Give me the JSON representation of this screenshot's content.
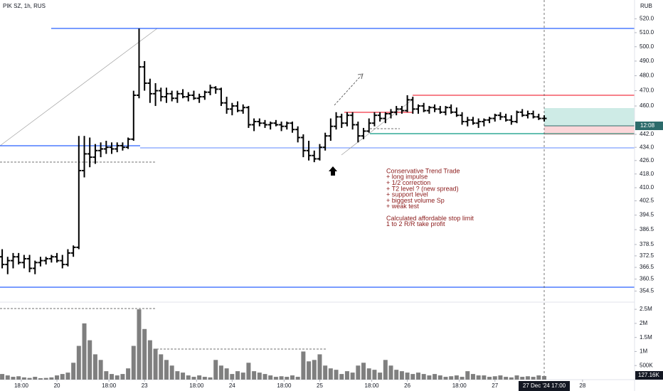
{
  "chart_data": {
    "type": "ohlc",
    "title": "PIK SZ, 1h, RUS",
    "currency": "RUB",
    "log": true,
    "color": "#000000",
    "volume_color": "#7f7f7f",
    "open": [
      372,
      368,
      370,
      372,
      369,
      371,
      366,
      369,
      370,
      371,
      372,
      370,
      368,
      374,
      377,
      420,
      430,
      428,
      432,
      433,
      434,
      433,
      435,
      434,
      439,
      467,
      486,
      475,
      468,
      470,
      466,
      468,
      465,
      468,
      466,
      467,
      465,
      466,
      469,
      472,
      471,
      462,
      458,
      460,
      457,
      459,
      448,
      450,
      449,
      448,
      449,
      448,
      447,
      449,
      445,
      440,
      432,
      429,
      427,
      434,
      441,
      447,
      453,
      449,
      454,
      448,
      441,
      444,
      449,
      454,
      452,
      455,
      456,
      458,
      457,
      464,
      458,
      460,
      457,
      459,
      458,
      456,
      459,
      456,
      454,
      450,
      451,
      449,
      450,
      451,
      452,
      454,
      453,
      451,
      450,
      456,
      454,
      455,
      453,
      452
    ],
    "high": [
      376,
      372,
      374,
      374,
      373,
      373,
      370,
      372,
      372,
      373,
      374,
      373,
      376,
      378,
      441,
      441,
      440,
      436,
      437,
      438,
      437,
      437,
      437,
      440,
      470,
      513,
      490,
      478,
      475,
      472,
      472,
      470,
      470,
      471,
      469,
      470,
      468,
      470,
      474,
      473,
      472,
      466,
      462,
      463,
      461,
      460,
      452,
      452,
      451,
      450,
      451,
      450,
      450,
      450,
      447,
      442,
      438,
      432,
      436,
      443,
      452,
      456,
      455,
      456,
      456,
      450,
      446,
      452,
      456,
      456,
      456,
      458,
      460,
      460,
      467,
      466,
      461,
      462,
      460,
      461,
      460,
      460,
      461,
      459,
      456,
      453,
      453,
      452,
      452,
      453,
      455,
      456,
      455,
      454,
      457,
      458,
      457,
      457,
      455,
      454
    ],
    "low": [
      366,
      363,
      366,
      368,
      366,
      364,
      363,
      367,
      368,
      369,
      369,
      366,
      367,
      372,
      376,
      416,
      422,
      424,
      428,
      430,
      430,
      431,
      432,
      433,
      438,
      465,
      470,
      462,
      460,
      463,
      462,
      463,
      462,
      465,
      463,
      464,
      462,
      464,
      467,
      468,
      460,
      455,
      454,
      456,
      455,
      446,
      444,
      447,
      446,
      445,
      447,
      444,
      445,
      443,
      437,
      428,
      426,
      425,
      426,
      432,
      438,
      445,
      446,
      447,
      445,
      437,
      439,
      443,
      447,
      450,
      449,
      452,
      454,
      455,
      456,
      455,
      455,
      456,
      455,
      456,
      455,
      454,
      455,
      453,
      448,
      447,
      448,
      446,
      447,
      449,
      450,
      451,
      450,
      448,
      449,
      453,
      452,
      452,
      451,
      450
    ],
    "close": [
      368,
      370,
      372,
      369,
      371,
      366,
      369,
      370,
      371,
      372,
      370,
      368,
      374,
      377,
      420,
      430,
      428,
      432,
      433,
      434,
      433,
      435,
      434,
      439,
      467,
      486,
      475,
      468,
      470,
      466,
      468,
      465,
      468,
      466,
      467,
      465,
      466,
      469,
      472,
      471,
      462,
      458,
      460,
      457,
      459,
      448,
      450,
      449,
      448,
      449,
      448,
      447,
      449,
      445,
      440,
      432,
      429,
      427,
      434,
      441,
      447,
      453,
      449,
      454,
      448,
      441,
      444,
      449,
      454,
      452,
      455,
      456,
      458,
      457,
      464,
      458,
      460,
      457,
      459,
      458,
      456,
      459,
      456,
      454,
      450,
      451,
      449,
      450,
      451,
      452,
      454,
      453,
      451,
      450,
      456,
      454,
      455,
      453,
      452,
      452
    ],
    "volume": [
      200000,
      150000,
      100000,
      120000,
      80000,
      60000,
      100000,
      50000,
      60000,
      80000,
      150000,
      200000,
      250000,
      600000,
      1200000,
      2000000,
      1400000,
      900000,
      700000,
      300000,
      200000,
      150000,
      200000,
      400000,
      1200000,
      2500000,
      1800000,
      1400000,
      1100000,
      900000,
      700000,
      500000,
      300000,
      250000,
      150000,
      100000,
      150000,
      100000,
      80000,
      700000,
      500000,
      400000,
      200000,
      300000,
      250000,
      600000,
      300000,
      250000,
      200000,
      150000,
      100000,
      120000,
      100000,
      150000,
      100000,
      1000000,
      650000,
      700000,
      900000,
      500000,
      400000,
      350000,
      200000,
      300000,
      250000,
      500000,
      600000,
      400000,
      350000,
      250000,
      700000,
      500000,
      350000,
      300000,
      250000,
      200000,
      250000,
      200000,
      150000,
      200000,
      150000,
      100000,
      120000,
      150000,
      100000,
      300000,
      200000,
      150000,
      150000,
      100000,
      120000,
      150000,
      100000,
      80000,
      150000,
      100000,
      120000,
      100000,
      150000,
      127160
    ],
    "volume_tag": "127.16K",
    "countdown": "12:08",
    "cursor_time": "27 Dec '24  17:00",
    "ylim": [
      349,
      534
    ],
    "yticks": [
      {
        "value": 520,
        "label": "520.0"
      },
      {
        "value": 510,
        "label": "510.0"
      },
      {
        "value": 500,
        "label": "500.0"
      },
      {
        "value": 490,
        "label": "490.0"
      },
      {
        "value": 480,
        "label": "480.0"
      },
      {
        "value": 470,
        "label": "470.0"
      },
      {
        "value": 460,
        "label": "460.0"
      },
      {
        "value": 442,
        "label": "442.0"
      },
      {
        "value": 434,
        "label": "434.0"
      },
      {
        "value": 426,
        "label": "426.0"
      },
      {
        "value": 418,
        "label": "418.0"
      },
      {
        "value": 410,
        "label": "410.0"
      },
      402.5,
      394.5,
      386.5,
      378.5,
      372.5,
      366.5,
      360.5,
      354.5
    ],
    "volume_ylim": [
      0,
      2730000
    ],
    "volume_yticks": [
      {
        "value": 2500000,
        "label": "2.5M"
      },
      {
        "value": 2000000,
        "label": "2M"
      },
      {
        "value": 1500000,
        "label": "1.5M"
      },
      {
        "value": 1000000,
        "label": "1M"
      },
      {
        "value": 500000,
        "label": "500K"
      }
    ],
    "xlim": [
      -0.4,
      115.5
    ],
    "xticks": [
      {
        "value": 3.5,
        "label": "18:00"
      },
      {
        "value": 10,
        "label": "20"
      },
      {
        "value": 19.5,
        "label": "18:00"
      },
      {
        "value": 26,
        "label": "23"
      },
      {
        "value": 35.5,
        "label": "18:00"
      },
      {
        "value": 42,
        "label": "24"
      },
      {
        "value": 51.5,
        "label": "18:00"
      },
      {
        "value": 58,
        "label": "25"
      },
      {
        "value": 67.5,
        "label": "18:00"
      },
      {
        "value": 74,
        "label": "26"
      },
      {
        "value": 83.5,
        "label": "18:00"
      },
      {
        "value": 90,
        "label": "27"
      },
      {
        "value": 106,
        "label": "28"
      }
    ],
    "annotation": [
      "Conservative Trend Trade",
      "+ long impulse",
      "+ 1/2 correction",
      "+ T2 level ? (new spread)",
      "+ support level",
      "+ biggest volume Sp",
      "+ weak test",
      "",
      "Calculated affordable stop limit",
      "1 to 2 R/R take profit"
    ]
  }
}
